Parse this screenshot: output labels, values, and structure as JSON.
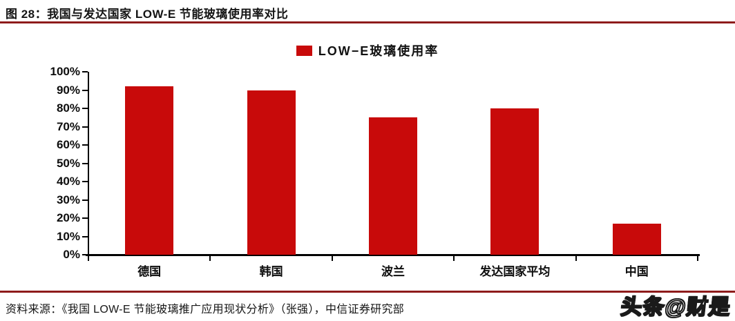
{
  "header": {
    "title": "图 28：我国与发达国家 LOW-E 节能玻璃使用率对比"
  },
  "legend": {
    "label": "LOW−E玻璃使用率"
  },
  "chart_data": {
    "type": "bar",
    "title": "LOW−E玻璃使用率",
    "categories": [
      "德国",
      "韩国",
      "波兰",
      "发达国家平均",
      "中国"
    ],
    "values": [
      92,
      90,
      75,
      80,
      17
    ],
    "unit": "%",
    "xlabel": "",
    "ylabel": "",
    "ylim": [
      0,
      100
    ],
    "ytick_step": 10,
    "ytick_labels": [
      "0%",
      "10%",
      "20%",
      "30%",
      "40%",
      "50%",
      "60%",
      "70%",
      "80%",
      "90%",
      "100%"
    ],
    "grid": false,
    "legend_position": "top",
    "legend_entries": [
      "LOW−E玻璃使用率"
    ],
    "bar_color": "#c80a0a"
  },
  "footer": {
    "source": "资料来源：《我国 LOW-E 节能玻璃推广应用现状分析》（张强），中信证券研究部"
  },
  "watermark": {
    "text": "头条@财是"
  },
  "colors": {
    "bar": "#c80a0a",
    "rule": "#8e1b1b",
    "axis": "#000000",
    "text": "#1a1a1a"
  }
}
